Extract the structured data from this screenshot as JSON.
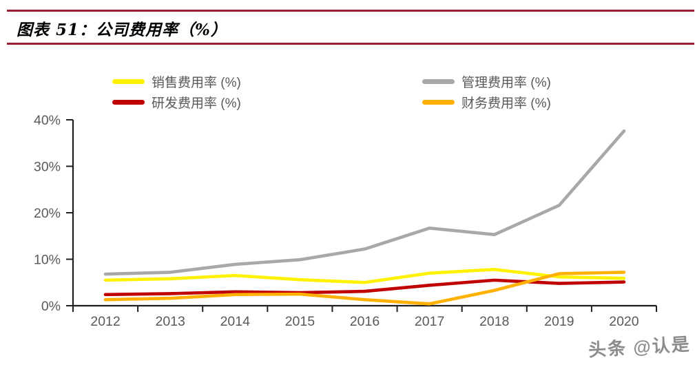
{
  "header": {
    "title": "图表 51：公司费用率（%）"
  },
  "legend": {
    "items": [
      {
        "label": "销售费用率 (%)",
        "color": "#FFF200"
      },
      {
        "label": "管理费用率 (%)",
        "color": "#A8A8A8"
      },
      {
        "label": "研发费用率 (%)",
        "color": "#C00000"
      },
      {
        "label": "财务费用率 (%)",
        "color": "#FFB000"
      }
    ]
  },
  "chart_data": {
    "type": "line",
    "title": "图表 51：公司费用率（%）",
    "categories": [
      "2012",
      "2013",
      "2014",
      "2015",
      "2016",
      "2017",
      "2018",
      "2019",
      "2020"
    ],
    "series": [
      {
        "name": "销售费用率 (%)",
        "color": "#FFF200",
        "values": [
          5.5,
          5.8,
          6.5,
          5.6,
          5.0,
          7.0,
          7.8,
          6.2,
          5.9
        ]
      },
      {
        "name": "管理费用率 (%)",
        "color": "#A8A8A8",
        "values": [
          6.8,
          7.2,
          8.9,
          9.9,
          12.2,
          16.7,
          15.3,
          21.6,
          37.6
        ]
      },
      {
        "name": "研发费用率 (%)",
        "color": "#C00000",
        "values": [
          2.4,
          2.6,
          3.0,
          2.8,
          3.1,
          4.4,
          5.5,
          4.8,
          5.1
        ]
      },
      {
        "name": "财务费用率 (%)",
        "color": "#FFB000",
        "values": [
          1.3,
          1.6,
          2.4,
          2.5,
          1.3,
          0.4,
          3.3,
          6.9,
          7.2
        ]
      }
    ],
    "ylim": [
      0,
      40
    ],
    "yticks": [
      "0%",
      "10%",
      "20%",
      "30%",
      "40%"
    ],
    "xlabel": "",
    "ylabel": "",
    "grid": false,
    "legend_position": "top"
  },
  "watermark": {
    "text": "头条 @认是"
  }
}
